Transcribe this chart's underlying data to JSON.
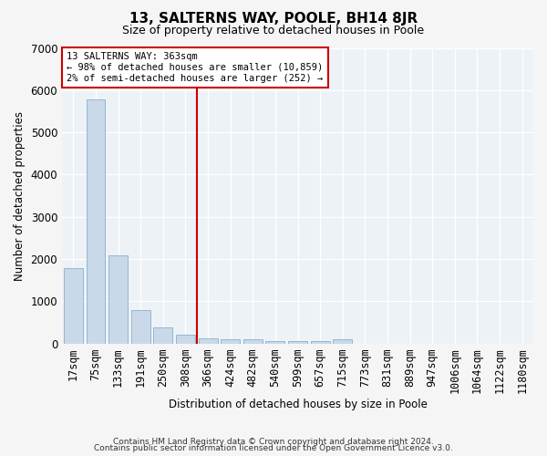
{
  "title": "13, SALTERNS WAY, POOLE, BH14 8JR",
  "subtitle": "Size of property relative to detached houses in Poole",
  "xlabel": "Distribution of detached houses by size in Poole",
  "ylabel": "Number of detached properties",
  "bar_color": "#c9d9ea",
  "bar_edgecolor": "#8aafc8",
  "background_color": "#edf2f7",
  "grid_color": "#ffffff",
  "fig_facecolor": "#f5f5f5",
  "categories": [
    "17sqm",
    "75sqm",
    "133sqm",
    "191sqm",
    "250sqm",
    "308sqm",
    "366sqm",
    "424sqm",
    "482sqm",
    "540sqm",
    "599sqm",
    "657sqm",
    "715sqm",
    "773sqm",
    "831sqm",
    "889sqm",
    "947sqm",
    "1006sqm",
    "1064sqm",
    "1122sqm",
    "1180sqm"
  ],
  "values": [
    1780,
    5780,
    2080,
    800,
    380,
    215,
    115,
    110,
    100,
    62,
    55,
    50,
    110,
    0,
    0,
    0,
    0,
    0,
    0,
    0,
    0
  ],
  "ylim": [
    0,
    7000
  ],
  "yticks": [
    0,
    1000,
    2000,
    3000,
    4000,
    5000,
    6000,
    7000
  ],
  "property_bin_index": 6,
  "property_label": "13 SALTERNS WAY: 363sqm",
  "annotation_line1": "← 98% of detached houses are smaller (10,859)",
  "annotation_line2": "2% of semi-detached houses are larger (252) →",
  "vline_color": "#cc0000",
  "footnote1": "Contains HM Land Registry data © Crown copyright and database right 2024.",
  "footnote2": "Contains public sector information licensed under the Open Government Licence v3.0."
}
